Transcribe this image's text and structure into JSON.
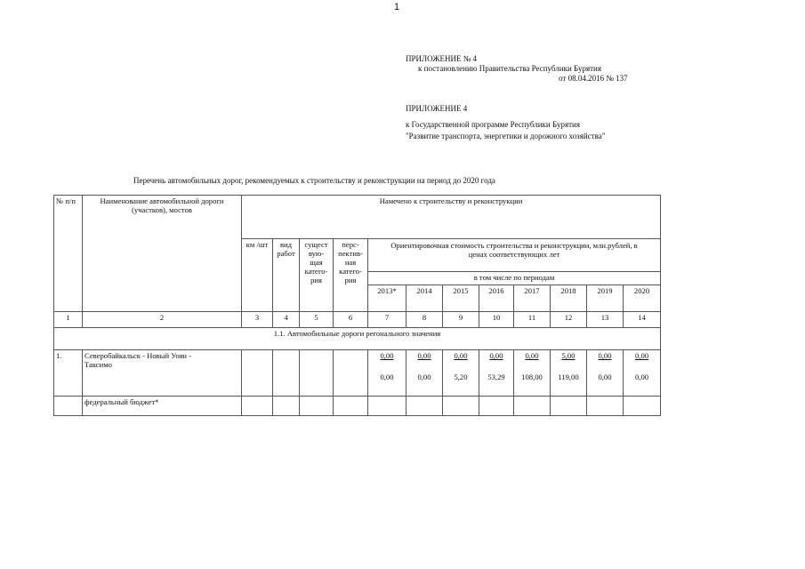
{
  "page_number": "1",
  "appendix1": {
    "title": "ПРИЛОЖЕНИЕ № 4",
    "line1": "к постановлению Правительства Республики Бурятия",
    "line2": "от 08.04.2016 № 137"
  },
  "appendix2": {
    "title": "ПРИЛОЖЕНИЕ  4",
    "line1": "к Государственной программе Республики Бурятия",
    "line2": "\"Развитие транспорта, энергетики и дорожного хозяйства\""
  },
  "doc_title": "Перечень автомобильных дорог, рекомендуемых к строительству и реконструкции на период до 2020 года",
  "table": {
    "h_num": "№ п/п",
    "h_name": "Наименование автомобильной дороги (участков), мостов",
    "h_planned": "Намечено к строительству и реконструкции",
    "h_km": "км /шт",
    "h_work": "вид работ",
    "h_cat_exist": "сущест вую- щая катего- рия",
    "h_cat_persp": "перс- пектив- ная катего- рия",
    "h_cost": "Ориентировочная стоимость строительства и реконструкции, млн.рублей, в ценах соответствующих лет",
    "h_periods": "в том числе по периодам",
    "years": [
      "2013*",
      "2014",
      "2015",
      "2016",
      "2017",
      "2018",
      "2019",
      "2020"
    ],
    "col_numbers": [
      "1",
      "2",
      "3",
      "4",
      "5",
      "6",
      "7",
      "8",
      "9",
      "10",
      "11",
      "12",
      "13",
      "14"
    ],
    "section": "1.1. Автомобильные дороги регонального значения",
    "row": {
      "num": "1.",
      "name": "Северобайкальск - Новый Уоян - Таксимо",
      "top": [
        "0,00",
        "0,00",
        "0,00",
        "0,00",
        "0,00",
        "5,00",
        "0,00",
        "0,00"
      ],
      "bottom": [
        "0,00",
        "0,00",
        "5,20",
        "53,29",
        "108,00",
        "119,00",
        "0,00",
        "0,00"
      ]
    },
    "federal": "федеральный бюджет*"
  }
}
